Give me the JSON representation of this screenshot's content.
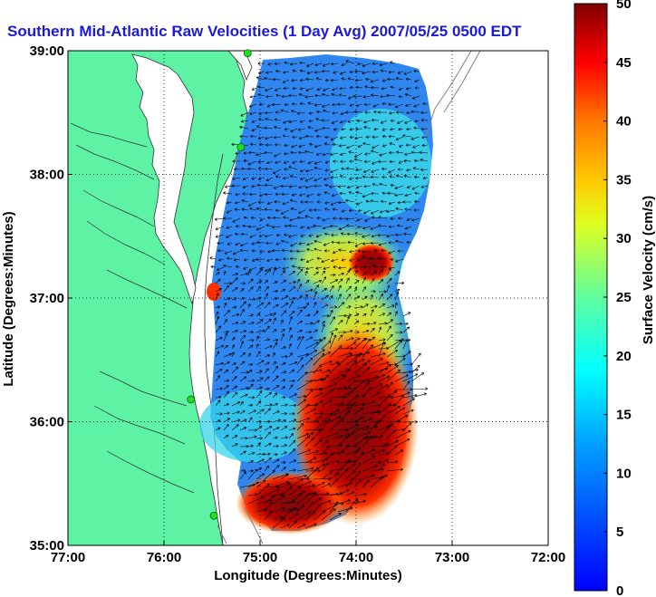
{
  "title": "Southern Mid-Atlantic Raw Velocities (1 Day Avg) 2007/05/25 0500 EDT",
  "map": {
    "x_axis_label": "Longitude (Degrees:Minutes)",
    "y_axis_label": "Latitude (Degrees:Minutes)",
    "lon_range": [
      -77,
      -72
    ],
    "lat_range": [
      35,
      39
    ],
    "x_ticks": [
      {
        "value": -77,
        "label": "77:00"
      },
      {
        "value": -76,
        "label": "76:00"
      },
      {
        "value": -75,
        "label": "75:00"
      },
      {
        "value": -74,
        "label": "74:00"
      },
      {
        "value": -73,
        "label": "73:00"
      },
      {
        "value": -72,
        "label": "72:00"
      }
    ],
    "y_ticks": [
      {
        "value": 39,
        "label": "39:00"
      },
      {
        "value": 38,
        "label": "38:00"
      },
      {
        "value": 37,
        "label": "37:00"
      },
      {
        "value": 36,
        "label": "36:00"
      },
      {
        "value": 35,
        "label": "35:00"
      }
    ],
    "grid": "dotted",
    "land_color": "#5ef2a5",
    "water_outside_color": "#ffffff"
  },
  "colorbar": {
    "label": "Surface Velocity (cm/s)",
    "min": 0,
    "max": 50,
    "ticks": [
      {
        "value": 0,
        "label": "0"
      },
      {
        "value": 5,
        "label": "5"
      },
      {
        "value": 10,
        "label": "10"
      },
      {
        "value": 15,
        "label": "15"
      },
      {
        "value": 20,
        "label": "20"
      },
      {
        "value": 25,
        "label": "25"
      },
      {
        "value": 30,
        "label": "30"
      },
      {
        "value": 35,
        "label": "35"
      },
      {
        "value": 40,
        "label": "40"
      },
      {
        "value": 45,
        "label": "45"
      },
      {
        "value": 50,
        "label": "50"
      }
    ],
    "colormap": "jet"
  },
  "stations": [
    {
      "name": "station-1",
      "lon": -75.13,
      "lat": 38.98
    },
    {
      "name": "station-2",
      "lon": -75.2,
      "lat": 38.22
    },
    {
      "name": "station-3",
      "lon": -75.72,
      "lat": 36.18
    },
    {
      "name": "station-4",
      "lon": -75.48,
      "lat": 35.24
    }
  ],
  "station_color": "#22dd22"
}
